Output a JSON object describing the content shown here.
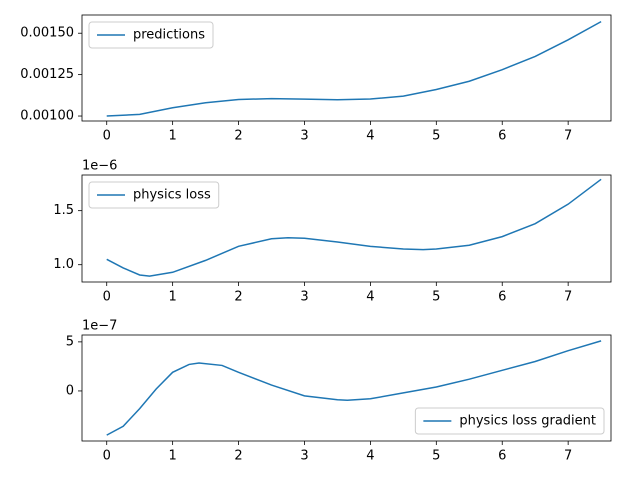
{
  "chart_data": [
    {
      "type": "line",
      "x": [
        0,
        0.5,
        1,
        1.5,
        2,
        2.5,
        3,
        3.5,
        4,
        4.5,
        5,
        5.5,
        6,
        6.5,
        7,
        7.5
      ],
      "series": [
        {
          "name": "predictions",
          "color": "#1f77b4",
          "values": [
            0.001,
            0.00101,
            0.00105,
            0.00108,
            0.0011,
            0.001105,
            0.001102,
            0.001098,
            0.001103,
            0.00112,
            0.00116,
            0.00121,
            0.00128,
            0.00136,
            0.00146,
            0.00157
          ]
        }
      ],
      "xlim": [
        -0.375,
        7.65
      ],
      "xticks": [
        0,
        1,
        2,
        3,
        4,
        5,
        6,
        7
      ],
      "ylim": [
        0.00097,
        0.00161
      ],
      "yticks": [
        {
          "value": 0.001,
          "label": "0.00100"
        },
        {
          "value": 0.00125,
          "label": "0.00125"
        },
        {
          "value": 0.0015,
          "label": "0.00150"
        }
      ],
      "legend": "upper left"
    },
    {
      "type": "line",
      "x": [
        0,
        0.25,
        0.5,
        0.65,
        1,
        1.5,
        2,
        2.5,
        2.75,
        3,
        3.5,
        4,
        4.5,
        4.8,
        5,
        5.5,
        6,
        6.5,
        7,
        7.5
      ],
      "series": [
        {
          "name": "physics loss",
          "color": "#1f77b4",
          "values": [
            1.05,
            0.97,
            0.905,
            0.895,
            0.93,
            1.04,
            1.17,
            1.24,
            1.25,
            1.245,
            1.21,
            1.17,
            1.145,
            1.14,
            1.145,
            1.18,
            1.26,
            1.38,
            1.56,
            1.79
          ]
        }
      ],
      "xlim": [
        -0.375,
        7.65
      ],
      "xticks": [
        0,
        1,
        2,
        3,
        4,
        5,
        6,
        7
      ],
      "ylim": [
        0.84,
        1.83
      ],
      "yticks": [
        {
          "value": 1.0,
          "label": "1.0"
        },
        {
          "value": 1.5,
          "label": "1.5"
        }
      ],
      "y_offset_label": "1e−6",
      "legend": "upper left"
    },
    {
      "type": "line",
      "x": [
        0,
        0.25,
        0.5,
        0.75,
        1,
        1.25,
        1.4,
        1.75,
        2,
        2.5,
        3,
        3.5,
        3.65,
        4,
        4.5,
        5,
        5.5,
        6,
        6.5,
        7,
        7.5
      ],
      "series": [
        {
          "name": "physics loss gradient",
          "color": "#1f77b4",
          "values": [
            -4.5,
            -3.6,
            -1.8,
            0.2,
            1.9,
            2.7,
            2.85,
            2.6,
            1.9,
            0.6,
            -0.5,
            -0.9,
            -0.95,
            -0.8,
            -0.2,
            0.4,
            1.2,
            2.1,
            3.0,
            4.1,
            5.1
          ]
        }
      ],
      "xlim": [
        -0.375,
        7.65
      ],
      "xticks": [
        0,
        1,
        2,
        3,
        4,
        5,
        6,
        7
      ],
      "ylim": [
        -5.1,
        5.7
      ],
      "yticks": [
        0,
        5
      ],
      "y_offset_label": "1e−7",
      "legend": "lower right"
    }
  ]
}
